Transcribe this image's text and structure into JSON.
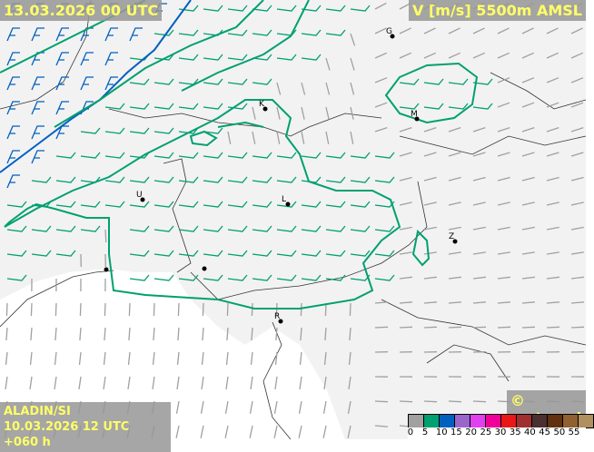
{
  "header": {
    "valid_time": "13.03.2026 00 UTC",
    "parameter": "V [m/s] 5500m AMSL"
  },
  "footer": {
    "model": "ALADIN/SI",
    "run": "10.03.2026 12 UTC +060 h",
    "copyright": "© meteo.si"
  },
  "legend": {
    "ticks": [
      "0",
      "5",
      "10",
      "15",
      "20",
      "25",
      "30",
      "35",
      "40",
      "45",
      "50",
      "55"
    ],
    "colors": [
      "#a0a0a0",
      "#00a070",
      "#0060c0",
      "#9966cc",
      "#e040f0",
      "#f0009a",
      "#e81818",
      "#a03030",
      "#4a3030",
      "#603010",
      "#906030",
      "#b09060"
    ]
  },
  "cities": [
    {
      "label": "G"
    },
    {
      "label": "K"
    },
    {
      "label": "M"
    },
    {
      "label": "U"
    },
    {
      "label": "L"
    },
    {
      "label": "Z"
    },
    {
      "label": "R"
    },
    {
      "label": ""
    },
    {
      "label": ""
    }
  ]
}
